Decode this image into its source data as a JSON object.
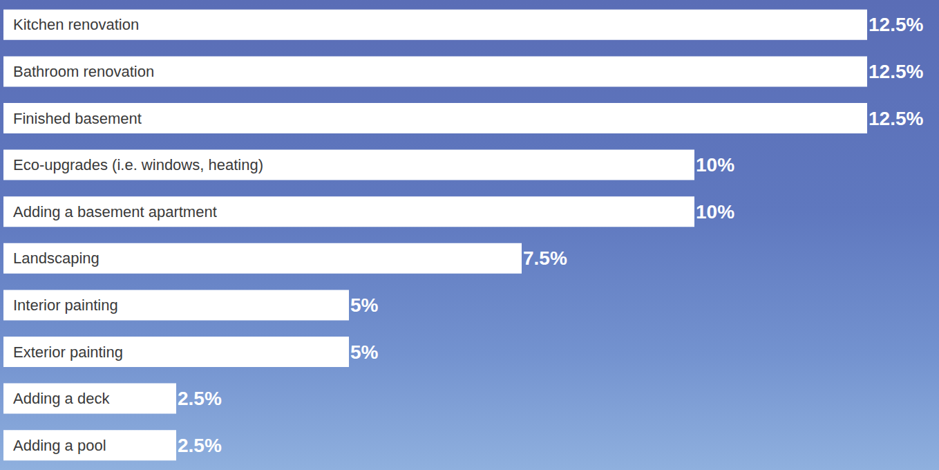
{
  "chart_data": {
    "type": "bar",
    "orientation": "horizontal",
    "categories": [
      "Kitchen renovation",
      "Bathroom renovation",
      "Finished basement",
      "Eco-upgrades (i.e. windows, heating)",
      "Adding a basement apartment",
      "Landscaping",
      "Interior painting",
      "Exterior painting",
      "Adding a deck",
      "Adding a pool"
    ],
    "values": [
      12.5,
      12.5,
      12.5,
      10,
      10,
      7.5,
      5,
      5,
      2.5,
      2.5
    ],
    "value_labels": [
      "12.5%",
      "12.5%",
      "12.5%",
      "10%",
      "10%",
      "7.5%",
      "5%",
      "5%",
      "2.5%",
      "2.5%"
    ],
    "color": "#ffffff",
    "xlim": [
      0,
      12.5
    ],
    "data_labels": true,
    "tick_labels": false,
    "grid": false
  }
}
